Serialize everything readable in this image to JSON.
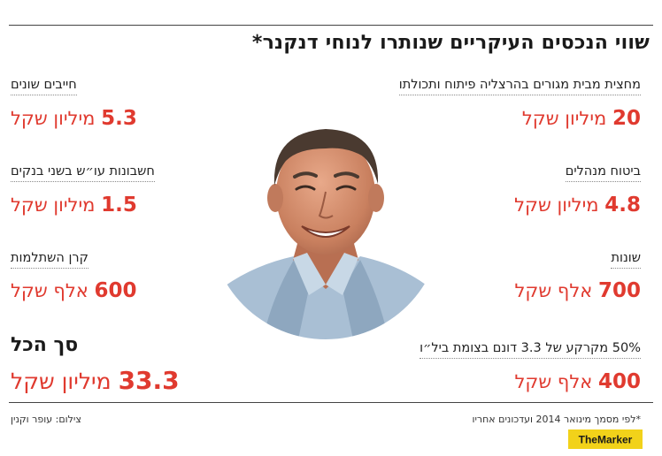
{
  "title": "שווי הנכסים העיקריים שנותרו לנוחי דנקנר*",
  "items_right": [
    {
      "label": "מחצית מבית מגורים בהרצליה פיתוח ותכולתו",
      "amount": "20",
      "unit": "מיליון שקל"
    },
    {
      "label": "ביטוח מנהלים",
      "amount": "4.8",
      "unit": "מיליון שקל"
    },
    {
      "label": "שונות",
      "amount": "700",
      "unit": "אלף שקל"
    },
    {
      "label": "50% מקרקע של 3.3 דונם בצומת ביל״ו",
      "amount": "400",
      "unit": "אלף שקל"
    }
  ],
  "items_left": [
    {
      "label": "חייבים שונים",
      "amount": "5.3",
      "unit": "מיליון שקל"
    },
    {
      "label": "חשבונות עו״ש בשני בנקים",
      "amount": "1.5",
      "unit": "מיליון שקל"
    },
    {
      "label": "קרן השתלמות",
      "amount": "600",
      "unit": "אלף שקל"
    }
  ],
  "total": {
    "label": "סך הכל",
    "amount": "33.3",
    "unit": "מיליון שקל"
  },
  "footnote": "*לפי מסמך מינואר 2014 ועדכונים אחריו",
  "credit": "צילום: עופר וקנין",
  "logo_text": "TheMarker",
  "colors": {
    "accent": "#e03a2f",
    "logo_bg": "#f2d21a",
    "text": "#222222"
  }
}
